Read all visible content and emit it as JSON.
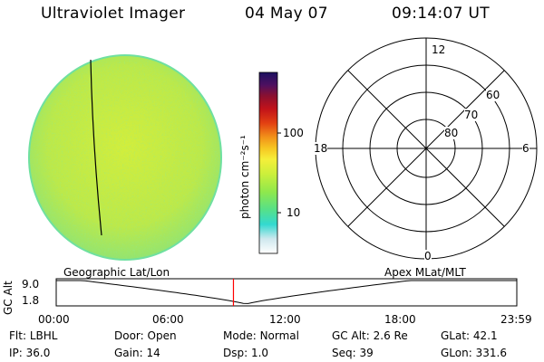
{
  "header": {
    "title": "Ultraviolet Imager",
    "date": "04 May 07",
    "time": "09:14:07 UT"
  },
  "colorbar": {
    "unit_label": "photon cm⁻²s⁻¹",
    "ticks": [
      {
        "label": "100",
        "value": 100
      },
      {
        "label": "10",
        "value": 10
      }
    ],
    "colors": [
      "#ffffff",
      "#cfe8ee",
      "#33d9d0",
      "#55e08a",
      "#8fe84c",
      "#ccef3b",
      "#f5ef3a",
      "#f7c722",
      "#f2941a",
      "#e24012",
      "#c1121a",
      "#8a1030",
      "#4e1060",
      "#1b1060"
    ]
  },
  "polar_plot": {
    "labels": {
      "top": "12",
      "bottom": "0",
      "left": "18",
      "right": "6"
    },
    "lat_labels": [
      "60",
      "70",
      "80"
    ]
  },
  "timeline": {
    "axis_label": "GC Alt",
    "left_label": "Geographic Lat/Lon",
    "right_label": "Apex MLat/MLT",
    "y_ticks": [
      "9.0",
      "1.8"
    ],
    "x_ticks": [
      "00:00",
      "06:00",
      "12:00",
      "18:00",
      "23:59"
    ],
    "current_time_hours": 9.235,
    "orbit_min_hours": 9.9
  },
  "metadata": {
    "row1": [
      {
        "key": "Flt:",
        "value": "LBHL"
      },
      {
        "key": "Door:",
        "value": "Open"
      },
      {
        "key": "Mode:",
        "value": "Normal"
      },
      {
        "key": "GC Alt:",
        "value": "2.6 Re"
      },
      {
        "key": "GLat:",
        "value": "42.1"
      }
    ],
    "row2": [
      {
        "key": "IP:",
        "value": "36.0"
      },
      {
        "key": "Gain:",
        "value": "14"
      },
      {
        "key": "Dsp:",
        "value": "1.0"
      },
      {
        "key": "Seq:",
        "value": "39"
      },
      {
        "key": "GLon:",
        "value": "331.6"
      }
    ]
  },
  "colors": {
    "disk_base": "#c6ea3e",
    "disk_rim": "#6fe0a0",
    "time_marker": "#ff0000"
  }
}
